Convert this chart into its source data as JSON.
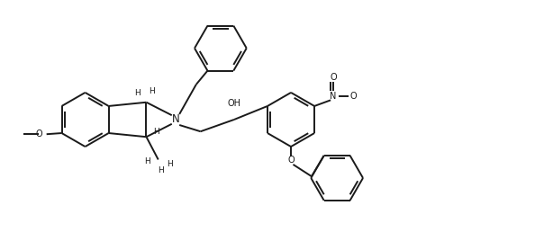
{
  "background_color": "#ffffff",
  "line_color": "#1a1a1a",
  "line_width": 1.4,
  "font_size": 7.0,
  "fig_width": 6.04,
  "fig_height": 2.78,
  "dpi": 100,
  "xlim": [
    0,
    10
  ],
  "ylim": [
    0,
    4.6
  ]
}
